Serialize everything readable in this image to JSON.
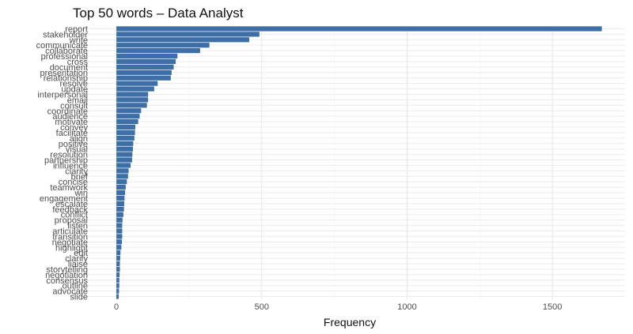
{
  "chart_data": {
    "type": "bar",
    "orientation": "horizontal",
    "title": "Top 50 words – Data Analyst",
    "xlabel": "Frequency",
    "ylabel": "",
    "xlim": [
      -150,
      1750
    ],
    "xticks": [
      0,
      500,
      1000,
      1500
    ],
    "grid": true,
    "bar_color": "#3d6fa6",
    "categories": [
      "report",
      "stakeholder",
      "write",
      "communicate",
      "collaborate",
      "professional",
      "cross",
      "document",
      "presentation",
      "relationship",
      "resolve",
      "update",
      "interpersonal",
      "email",
      "consult",
      "coordinate",
      "audience",
      "motivate",
      "convey",
      "facilitate",
      "align",
      "positive",
      "visual",
      "resolution",
      "partnership",
      "influence",
      "clarity",
      "brief",
      "concise",
      "teamwork",
      "win",
      "engagement",
      "escalate",
      "feedback",
      "conflict",
      "proposal",
      "listen",
      "articulate",
      "transition",
      "negotiate",
      "highlight",
      "edit",
      "clarify",
      "liaise",
      "storytelling",
      "negotiation",
      "consensus",
      "outline",
      "advocate",
      "slide"
    ],
    "values": [
      1670,
      492,
      457,
      320,
      288,
      210,
      204,
      197,
      190,
      187,
      142,
      130,
      109,
      109,
      105,
      85,
      80,
      75,
      65,
      64,
      62,
      58,
      57,
      55,
      54,
      49,
      42,
      40,
      36,
      32,
      30,
      28,
      27,
      26,
      24,
      21,
      20,
      20,
      20,
      19,
      17,
      14,
      13,
      12,
      12,
      11,
      10,
      10,
      9,
      8
    ]
  }
}
